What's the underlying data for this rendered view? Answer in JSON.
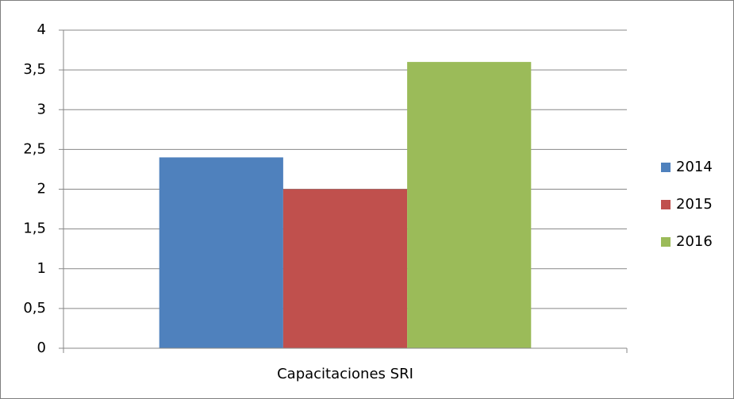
{
  "chart_data": {
    "type": "bar",
    "categories": [
      "Capacitaciones SRI"
    ],
    "series": [
      {
        "name": "2014",
        "color": "#4f81bd",
        "values": [
          2.4
        ]
      },
      {
        "name": "2015",
        "color": "#c0504d",
        "values": [
          2
        ]
      },
      {
        "name": "2016",
        "color": "#9bbb59",
        "values": [
          3.6
        ]
      }
    ],
    "ylim": [
      0,
      4
    ],
    "yticks": [
      0,
      {
        "value": 0.5,
        "label": "0,5"
      },
      1,
      {
        "value": 1.5,
        "label": "1,5"
      },
      2,
      {
        "value": 2.5,
        "label": "2,5"
      },
      3,
      {
        "value": 3.5,
        "label": "3,5"
      },
      4
    ],
    "grid": true,
    "legend": "right"
  }
}
